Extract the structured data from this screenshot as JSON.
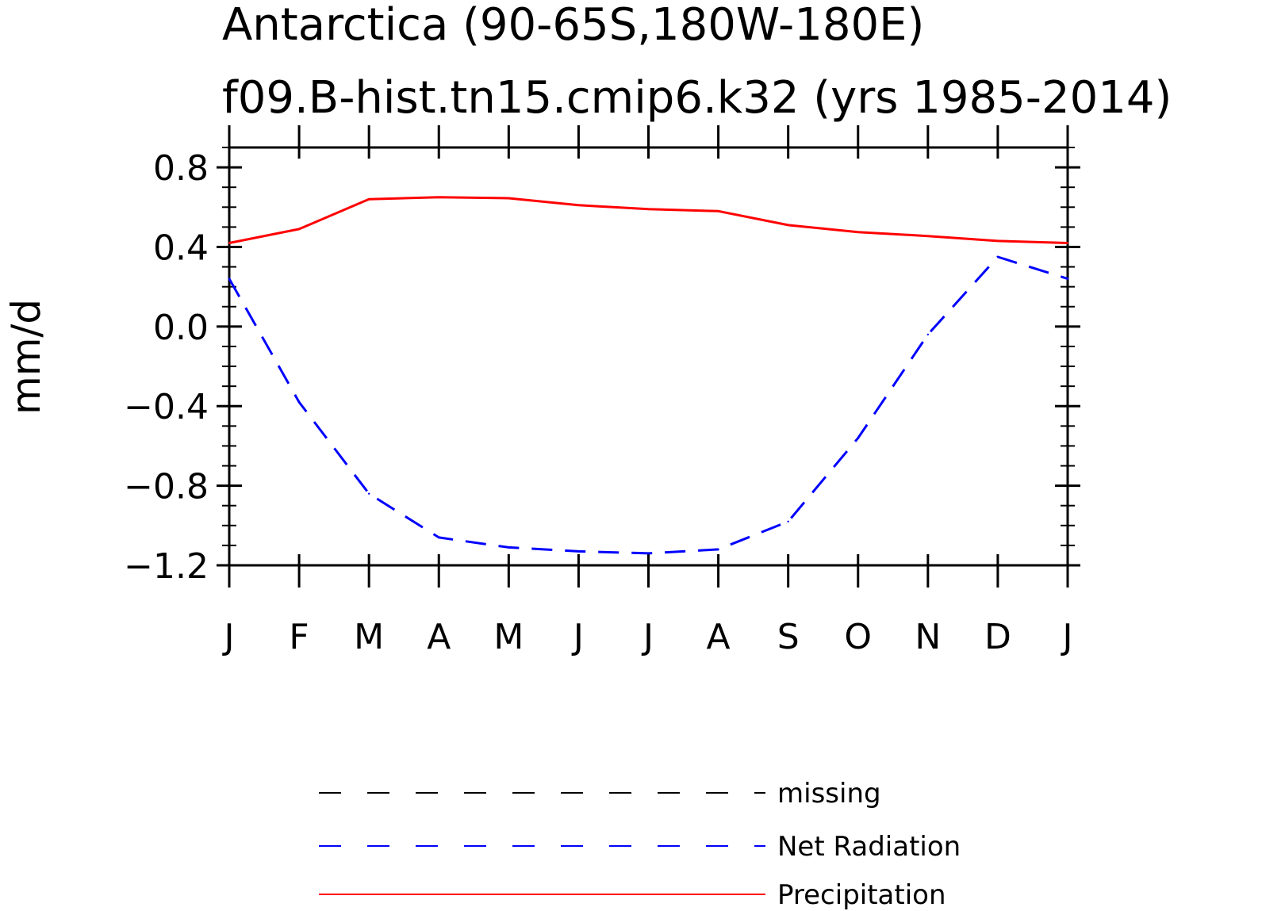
{
  "chart_data": {
    "type": "line",
    "title": "Antarctica (90-65S,180W-180E)",
    "subtitle": "f09.B-hist.tn15.cmip6.k32 (yrs 1985-2014)",
    "ylabel": "mm/d",
    "xlabel": "",
    "categories": [
      "J",
      "F",
      "M",
      "A",
      "M",
      "J",
      "J",
      "A",
      "S",
      "O",
      "N",
      "D",
      "J"
    ],
    "y_ticks": [
      0.8,
      0.4,
      0.0,
      -0.4,
      -0.8,
      -1.2
    ],
    "y_tick_labels": [
      "0.8",
      "0.4",
      "0.0",
      "−0.4",
      "−0.8",
      "−1.2"
    ],
    "ylim": [
      -1.2,
      0.9
    ],
    "grid": false,
    "legend_position": "bottom",
    "series": [
      {
        "name": "Net Radiation",
        "color": "#0000ff",
        "style": "dashed",
        "values": [
          0.24,
          -0.38,
          -0.84,
          -1.06,
          -1.11,
          -1.13,
          -1.14,
          -1.12,
          -0.98,
          -0.56,
          -0.04,
          0.35,
          0.24
        ]
      },
      {
        "name": "Precipitation",
        "color": "#ff0000",
        "style": "solid",
        "values": [
          0.42,
          0.49,
          0.64,
          0.65,
          0.645,
          0.61,
          0.59,
          0.58,
          0.51,
          0.475,
          0.455,
          0.43,
          0.42
        ]
      }
    ],
    "legend": [
      {
        "name": "missing",
        "color": "#000000",
        "style": "dashed"
      },
      {
        "name": "Net Radiation",
        "color": "#0000ff",
        "style": "dashed"
      },
      {
        "name": "Precipitation",
        "color": "#ff0000",
        "style": "solid"
      }
    ]
  }
}
